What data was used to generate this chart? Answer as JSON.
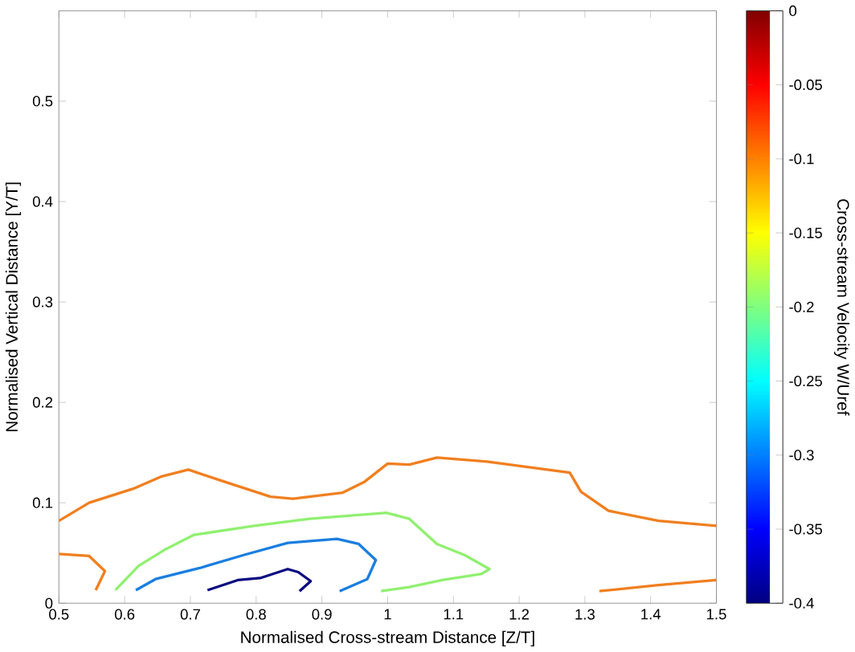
{
  "chart_data": {
    "type": "line",
    "xlabel": "Normalised Cross-stream Distance [Z/T]",
    "ylabel": "Normalised Vertical Distance [Y/T]",
    "clabel": "Cross-stream Velocity W/Uref",
    "xlim": [
      0.5,
      1.5
    ],
    "ylim": [
      0,
      0.59
    ],
    "xticks": [
      0.5,
      0.6,
      0.7,
      0.8,
      0.9,
      1,
      1.1,
      1.2,
      1.3,
      1.4,
      1.5
    ],
    "yticks": [
      0,
      0.1,
      0.2,
      0.3,
      0.4,
      0.5
    ],
    "clim": [
      -0.4,
      0
    ],
    "cticks": [
      -0.4,
      -0.35,
      -0.3,
      -0.25,
      -0.2,
      -0.15,
      -0.1,
      -0.05,
      0
    ],
    "grid": false,
    "marker": "none",
    "line_style": "solid",
    "series": [
      {
        "color": "#f07f1f",
        "x": [
          0.5,
          0.546,
          0.613,
          0.655,
          0.697,
          0.747,
          0.822,
          0.856,
          0.931,
          0.965,
          1.0,
          1.033,
          1.075,
          1.151,
          1.277,
          1.294,
          1.336,
          1.412,
          1.5
        ],
        "values": [
          0.082,
          0.1,
          0.114,
          0.126,
          0.133,
          0.122,
          0.106,
          0.104,
          0.11,
          0.121,
          0.139,
          0.138,
          0.145,
          0.141,
          0.13,
          0.111,
          0.092,
          0.082,
          0.077
        ]
      },
      {
        "color": "#f07f1f",
        "x": [
          0.5,
          0.546,
          0.57,
          0.556
        ],
        "values": [
          0.049,
          0.047,
          0.032,
          0.013
        ]
      },
      {
        "color": "#f07f1f",
        "x": [
          1.322,
          1.412,
          1.5
        ],
        "values": [
          0.012,
          0.018,
          0.023
        ]
      },
      {
        "color": "#90f070",
        "x": [
          0.586,
          0.621,
          0.663,
          0.705,
          0.797,
          0.881,
          0.998,
          1.033,
          1.075,
          1.117,
          1.155,
          1.142,
          1.083,
          1.033,
          0.99
        ],
        "values": [
          0.013,
          0.037,
          0.054,
          0.068,
          0.077,
          0.084,
          0.09,
          0.084,
          0.059,
          0.048,
          0.034,
          0.029,
          0.023,
          0.016,
          0.012
        ]
      },
      {
        "color": "#1a7ee0",
        "x": [
          0.617,
          0.647,
          0.714,
          0.781,
          0.848,
          0.923,
          0.956,
          0.982,
          0.969,
          0.927
        ],
        "values": [
          0.013,
          0.024,
          0.035,
          0.048,
          0.06,
          0.064,
          0.059,
          0.043,
          0.024,
          0.012
        ]
      },
      {
        "color": "#0a0a80",
        "x": [
          0.726,
          0.772,
          0.806,
          0.848,
          0.864,
          0.883,
          0.866
        ],
        "values": [
          0.013,
          0.023,
          0.025,
          0.034,
          0.031,
          0.022,
          0.012
        ]
      }
    ]
  }
}
